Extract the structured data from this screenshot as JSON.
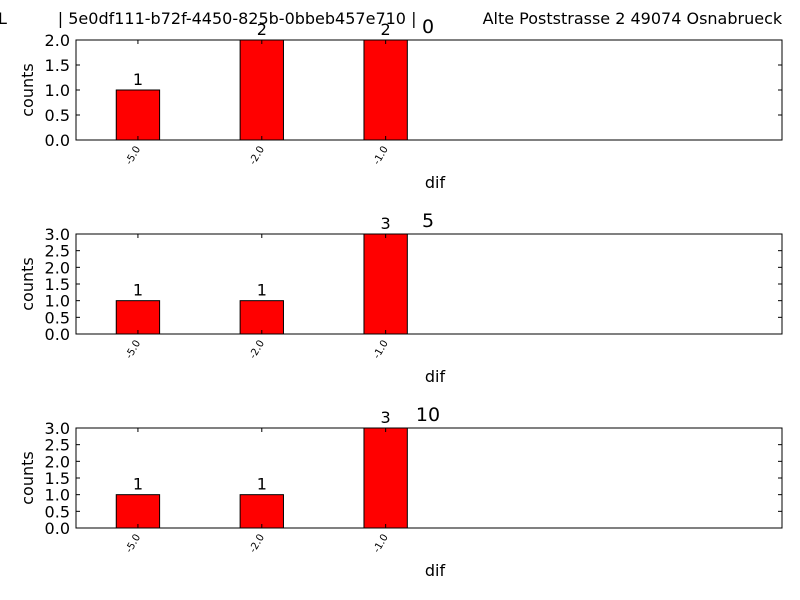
{
  "header": {
    "text": "L          | 5e0df111-b72f-4450-825b-0bbeb457e710 |             Alte Poststrasse 2 49074 Osnabrueck"
  },
  "colors": {
    "bar_fill": "#ff0000",
    "bar_edge": "#000000",
    "axes": "#000000"
  },
  "chart_data": [
    {
      "type": "bar",
      "title": "0",
      "xlabel": "dif",
      "ylabel": "counts",
      "categories": [
        "-5.0",
        "-2.0",
        "-1.0"
      ],
      "values": [
        1,
        2,
        2
      ],
      "data_labels": [
        "1",
        "2",
        "2"
      ],
      "ylim": [
        0,
        2
      ],
      "yticks": [
        0,
        0.5,
        1,
        1.5,
        2
      ],
      "ytick_labels": [
        "0.0",
        "0.5",
        "1.0",
        "1.5",
        "2.0"
      ],
      "grid": false,
      "legend": "none"
    },
    {
      "type": "bar",
      "title": "5",
      "xlabel": "dif",
      "ylabel": "counts",
      "categories": [
        "-5.0",
        "-2.0",
        "-1.0"
      ],
      "values": [
        1,
        1,
        3
      ],
      "data_labels": [
        "1",
        "1",
        "3"
      ],
      "ylim": [
        0,
        3
      ],
      "yticks": [
        0,
        0.5,
        1,
        1.5,
        2,
        2.5,
        3
      ],
      "ytick_labels": [
        "0.0",
        "0.5",
        "1.0",
        "1.5",
        "2.0",
        "2.5",
        "3.0"
      ],
      "grid": false,
      "legend": "none"
    },
    {
      "type": "bar",
      "title": "10",
      "xlabel": "dif",
      "ylabel": "counts",
      "categories": [
        "-5.0",
        "-2.0",
        "-1.0"
      ],
      "values": [
        1,
        1,
        3
      ],
      "data_labels": [
        "1",
        "1",
        "3"
      ],
      "ylim": [
        0,
        3
      ],
      "yticks": [
        0,
        0.5,
        1,
        1.5,
        2,
        2.5,
        3
      ],
      "ytick_labels": [
        "0.0",
        "0.5",
        "1.0",
        "1.5",
        "2.0",
        "2.5",
        "3.0"
      ],
      "grid": false,
      "legend": "none"
    }
  ]
}
